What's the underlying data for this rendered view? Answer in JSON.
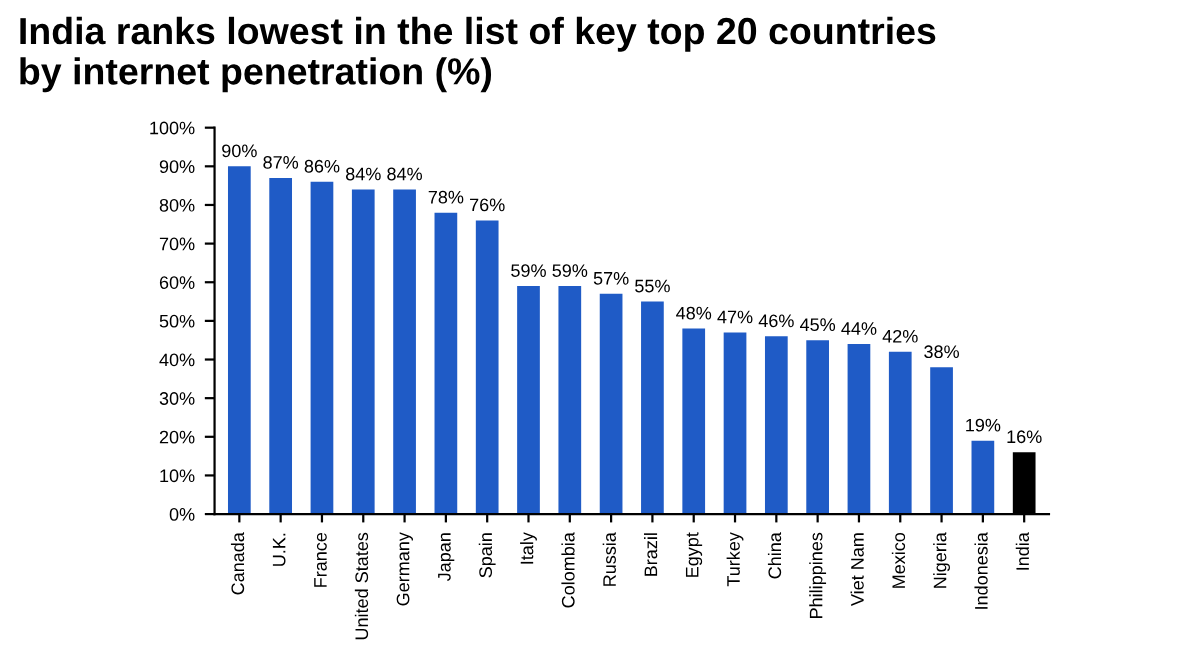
{
  "chart_data": {
    "type": "bar",
    "title": "India ranks lowest in the list of key top 20 countries\nby internet penetration (%)",
    "categories": [
      "Canada",
      "U.K.",
      "France",
      "United States",
      "Germany",
      "Japan",
      "Spain",
      "Italy",
      "Colombia",
      "Russia",
      "Brazil",
      "Egypt",
      "Turkey",
      "China",
      "Philippines",
      "Viet Nam",
      "Mexico",
      "Nigeria",
      "Indonesia",
      "India"
    ],
    "values": [
      90,
      87,
      86,
      84,
      84,
      78,
      76,
      59,
      59,
      57,
      55,
      48,
      47,
      46,
      45,
      44,
      42,
      38,
      19,
      16
    ],
    "colors": [
      "#1f5bc6",
      "#1f5bc6",
      "#1f5bc6",
      "#1f5bc6",
      "#1f5bc6",
      "#1f5bc6",
      "#1f5bc6",
      "#1f5bc6",
      "#1f5bc6",
      "#1f5bc6",
      "#1f5bc6",
      "#1f5bc6",
      "#1f5bc6",
      "#1f5bc6",
      "#1f5bc6",
      "#1f5bc6",
      "#1f5bc6",
      "#1f5bc6",
      "#1f5bc6",
      "#000000"
    ],
    "value_labels": [
      "90%",
      "87%",
      "86%",
      "84%",
      "84%",
      "78%",
      "76%",
      "59%",
      "59%",
      "57%",
      "55%",
      "48%",
      "47%",
      "46%",
      "45%",
      "44%",
      "42%",
      "38%",
      "19%",
      "16%"
    ],
    "ylim": [
      0,
      100
    ],
    "yticks": [
      {
        "value": 0,
        "label": "0%"
      },
      {
        "value": 10,
        "label": "10%"
      },
      {
        "value": 20,
        "label": "20%"
      },
      {
        "value": 30,
        "label": "30%"
      },
      {
        "value": 40,
        "label": "40%"
      },
      {
        "value": 50,
        "label": "50%"
      },
      {
        "value": 60,
        "label": "60%"
      },
      {
        "value": 70,
        "label": "70%"
      },
      {
        "value": 80,
        "label": "80%"
      },
      {
        "value": 90,
        "label": "90%"
      },
      {
        "value": 100,
        "label": "100%"
      }
    ],
    "grid": false,
    "legend": false
  }
}
